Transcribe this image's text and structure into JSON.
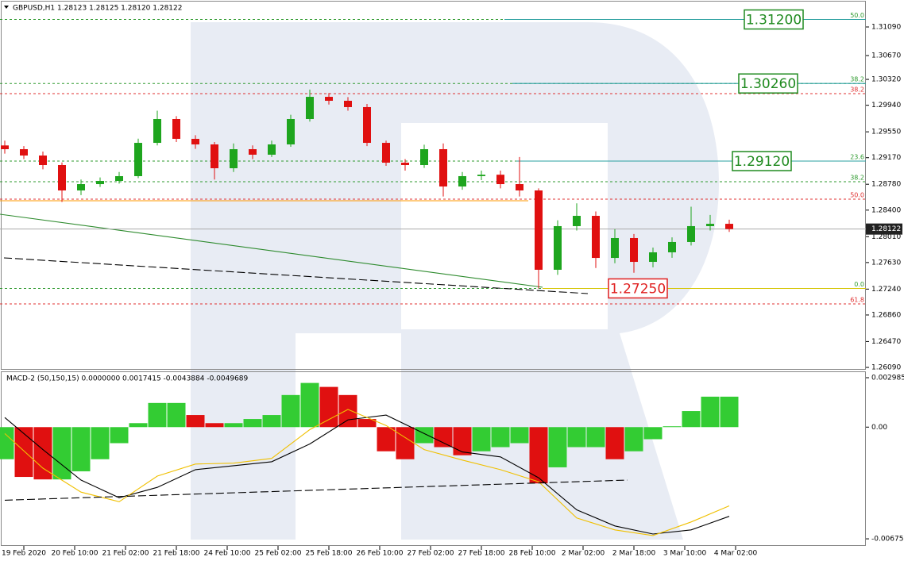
{
  "chart_data": [
    {
      "type": "candlestick",
      "title": "GBPUSD,H1  1.28123 1.28125 1.28120 1.28122",
      "x": [
        -6,
        0,
        6,
        12,
        18,
        24,
        30,
        36,
        42,
        48,
        54,
        60,
        66,
        72,
        78,
        84,
        90,
        96,
        102,
        108,
        114,
        120,
        126,
        132,
        138,
        144,
        150,
        156,
        162,
        168,
        174,
        180,
        186,
        192,
        198,
        204,
        210,
        216,
        222
      ],
      "open": [
        1.2935,
        1.29295,
        1.29202,
        1.29062,
        1.28689,
        1.28782,
        1.28829,
        1.28899,
        1.29388,
        1.29738,
        1.29447,
        1.29365,
        1.29015,
        1.29295,
        1.29214,
        1.29365,
        1.29738,
        1.30064,
        1.30006,
        1.29913,
        1.29388,
        1.29097,
        1.29062,
        1.29295,
        1.28747,
        1.28899,
        1.2892,
        1.28782,
        1.28689,
        1.27524,
        1.28165,
        1.28316,
        1.27698,
        1.2799,
        1.2764,
        1.2778,
        1.27932,
        1.28165,
        1.28199
      ],
      "high": [
        1.2942,
        1.2934,
        1.2926,
        1.291,
        1.2885,
        1.2888,
        1.2896,
        1.2945,
        1.2986,
        1.2978,
        1.295,
        1.294,
        1.2938,
        1.2935,
        1.2942,
        1.298,
        1.3017,
        1.3012,
        1.3006,
        1.2996,
        1.2942,
        1.2915,
        1.2936,
        1.2938,
        1.2896,
        1.2898,
        1.2898,
        1.2918,
        1.2872,
        1.2825,
        1.285,
        1.2838,
        1.2812,
        1.2805,
        1.2785,
        1.28,
        1.2845,
        1.2833,
        1.2826
      ],
      "low": [
        1.2923,
        1.2915,
        1.29,
        1.2852,
        1.2862,
        1.2874,
        1.2879,
        1.2887,
        1.2935,
        1.294,
        1.293,
        1.2885,
        1.2896,
        1.2915,
        1.2918,
        1.2933,
        1.297,
        1.2995,
        1.2986,
        1.2934,
        1.2905,
        1.2898,
        1.2902,
        1.286,
        1.287,
        1.2884,
        1.2872,
        1.286,
        1.2725,
        1.2745,
        1.281,
        1.2755,
        1.2762,
        1.2748,
        1.2756,
        1.277,
        1.2788,
        1.281,
        1.2808
      ],
      "close": [
        1.29295,
        1.29202,
        1.29062,
        1.28689,
        1.28782,
        1.28829,
        1.28899,
        1.29388,
        1.29738,
        1.29447,
        1.29365,
        1.29015,
        1.29295,
        1.29214,
        1.29365,
        1.29738,
        1.30064,
        1.30006,
        1.29913,
        1.29388,
        1.29097,
        1.29062,
        1.29295,
        1.28747,
        1.28899,
        1.2892,
        1.28782,
        1.28689,
        1.27524,
        1.28165,
        1.28316,
        1.27698,
        1.2799,
        1.2764,
        1.2778,
        1.27932,
        1.28165,
        1.28199,
        1.28122
      ],
      "up_color": "#1ea51e",
      "down_color": "#e01010",
      "xlim": [
        -7.5,
        265
      ],
      "ylim": [
        1.26067,
        1.31486
      ],
      "yticks": [
        {
          "value": 1.3109,
          "label": "1.31090"
        },
        {
          "value": 1.3067,
          "label": "1.30670"
        },
        {
          "value": 1.3032,
          "label": "1.30320"
        },
        {
          "value": 1.2994,
          "label": "1.29940"
        },
        {
          "value": 1.2955,
          "label": "1.29550"
        },
        {
          "value": 1.2917,
          "label": "1.29170"
        },
        {
          "value": 1.2878,
          "label": "1.28780"
        },
        {
          "value": 1.284,
          "label": "1.28400"
        },
        {
          "value": 1.2801,
          "label": "1.28010"
        },
        {
          "value": 1.2763,
          "label": "1.27630"
        },
        {
          "value": 1.2724,
          "label": "1.27240"
        },
        {
          "value": 1.2686,
          "label": "1.26860"
        },
        {
          "value": 1.2647,
          "label": "1.26470"
        },
        {
          "value": 1.2609,
          "label": "1.26090"
        }
      ],
      "xticks": [
        {
          "value": 0,
          "label": "19 Feb 2020"
        },
        {
          "value": 16,
          "label": "20 Feb 10:00"
        },
        {
          "value": 32,
          "label": "21 Feb 02:00"
        },
        {
          "value": 48,
          "label": "21 Feb 18:00"
        },
        {
          "value": 64,
          "label": "24 Feb 10:00"
        },
        {
          "value": 80,
          "label": "25 Feb 02:00"
        },
        {
          "value": 96,
          "label": "25 Feb 18:00"
        },
        {
          "value": 112,
          "label": "26 Feb 10:00"
        },
        {
          "value": 128,
          "label": "27 Feb 02:00"
        },
        {
          "value": 144,
          "label": "27 Feb 18:00"
        },
        {
          "value": 160,
          "label": "28 Feb 10:00"
        },
        {
          "value": 176,
          "label": "2 Mar 02:00"
        },
        {
          "value": 192,
          "label": "2 Mar 18:00"
        },
        {
          "value": 208,
          "label": "3 Mar 10:00"
        },
        {
          "value": 224,
          "label": "4 Mar 02:00"
        }
      ],
      "last_price": {
        "value": 1.28122,
        "label": "1.28122"
      },
      "levels": [
        {
          "value": 1.312,
          "label": "50.0",
          "color": "#2e9a2e"
        },
        {
          "value": 1.3026,
          "label": "38.2",
          "color": "#2e9a2e"
        },
        {
          "value": 1.30111,
          "label": "38.2",
          "color": "#e03030"
        },
        {
          "value": 1.2912,
          "label": "23.6",
          "color": "#2e9a2e"
        },
        {
          "value": 1.28817,
          "label": "38.2",
          "color": "#2e9a2e"
        },
        {
          "value": 1.28561,
          "label": "50.0",
          "color": "#e03030"
        },
        {
          "value": 1.2725,
          "label": "0.0",
          "color": "#2e9a2e"
        },
        {
          "value": 1.27022,
          "label": "61.8",
          "color": "#e03030"
        }
      ],
      "callouts": [
        {
          "value": 1.312,
          "label": "1.31200",
          "color": "#1f8a1f"
        },
        {
          "value": 1.3026,
          "label": "1.30260",
          "color": "#1f8a1f"
        },
        {
          "value": 1.2912,
          "label": "1.29120",
          "color": "#1f8a1f"
        },
        {
          "value": 1.2725,
          "label": "1.27250",
          "color": "#e02020"
        }
      ],
      "lines": [
        {
          "x": [
            -7.5,
            163.25
          ],
          "values": [
            1.28339,
            1.27267
          ],
          "color": "#2e8b2e",
          "dash": false
        },
        {
          "x": [
            -6.25,
            177.5
          ],
          "values": [
            1.27698,
            1.27174
          ],
          "color": "#000000",
          "dash": true
        },
        {
          "x": [
            -7.5,
            158.75
          ],
          "values": [
            1.28538,
            1.28538
          ],
          "color": "#ff9900",
          "dash": false
        },
        {
          "x": [
            151.25,
            265
          ],
          "values": [
            1.312,
            1.312
          ],
          "color": "#2aa0a0",
          "dash": false
        },
        {
          "x": [
            153.75,
            265
          ],
          "values": [
            1.3026,
            1.3026
          ],
          "color": "#2aa0a0",
          "dash": false
        },
        {
          "x": [
            155,
            265
          ],
          "values": [
            1.2912,
            1.2912
          ],
          "color": "#2aa0a0",
          "dash": false
        },
        {
          "x": [
            163.25,
            265
          ],
          "values": [
            1.2725,
            1.2725
          ],
          "color": "#d4c400",
          "dash": false
        }
      ]
    },
    {
      "type": "macd",
      "title": "MACD-2 (50,150,15) 0.0000000 0.0017415 -0.0043884 -0.0049689",
      "x": [
        -6,
        0,
        6,
        12,
        18,
        24,
        30,
        36,
        42,
        48,
        54,
        60,
        66,
        72,
        78,
        84,
        90,
        96,
        102,
        108,
        114,
        120,
        126,
        132,
        138,
        144,
        150,
        156,
        162,
        168,
        174,
        180,
        186,
        192,
        198,
        204,
        210,
        216,
        222
      ],
      "histogram": [
        -0.00194,
        -0.00301,
        -0.00316,
        -0.00316,
        -0.00267,
        -0.00194,
        -0.00097,
        0.00024,
        0.00146,
        0.00146,
        0.00073,
        0.00024,
        0.00024,
        0.00049,
        0.00073,
        0.00194,
        0.00267,
        0.00243,
        0.00194,
        0.00049,
        -0.00146,
        -0.00194,
        -0.00097,
        -0.00121,
        -0.0017,
        -0.00146,
        -0.00121,
        -0.00097,
        -0.0034,
        -0.00243,
        -0.00121,
        -0.00121,
        -0.00194,
        -0.00146,
        -0.00073,
        5e-05,
        0.00097,
        0.00184,
        0.00184
      ],
      "up_color": "#33cc33",
      "down_color": "#e01010",
      "xlim": [
        -7.5,
        265
      ],
      "ylim": [
        -0.00718,
        0.00337
      ],
      "yticks": [
        0.0029858,
        {
          "value": 0,
          "label": "0.00"
        },
        -0.006751
      ],
      "lines": [
        {
          "x": [
            -6,
            6,
            18,
            30,
            42,
            54,
            66,
            78,
            90,
            102,
            114,
            126,
            138,
            150,
            162,
            174,
            186,
            198,
            210,
            222
          ],
          "values": [
            0.00058,
            -0.00136,
            -0.0032,
            -0.00427,
            -0.00364,
            -0.00257,
            -0.00233,
            -0.00209,
            -0.00102,
            0.00044,
            0.00073,
            -0.00039,
            -0.0015,
            -0.0018,
            -0.00306,
            -0.005,
            -0.00597,
            -0.00646,
            -0.00621,
            -0.00539
          ],
          "color": "#000000",
          "dash": false
        },
        {
          "x": [
            -6,
            6,
            18,
            30,
            42,
            54,
            66,
            78,
            90,
            102,
            114,
            126,
            138,
            150,
            162,
            174,
            186,
            198,
            210,
            222
          ],
          "values": [
            -0.00039,
            -0.00248,
            -0.00393,
            -0.00451,
            -0.00296,
            -0.00223,
            -0.00218,
            -0.00189,
            -0.00015,
            0.00107,
            0.0001,
            -0.00136,
            -0.00199,
            -0.00257,
            -0.0033,
            -0.00549,
            -0.00621,
            -0.00655,
            -0.00573,
            -0.00476
          ],
          "color": "#f0c000",
          "dash": false
        },
        {
          "x": [
            -6,
            190
          ],
          "values": [
            -0.00442,
            -0.0032
          ],
          "color": "#000000",
          "dash": true
        }
      ]
    }
  ]
}
